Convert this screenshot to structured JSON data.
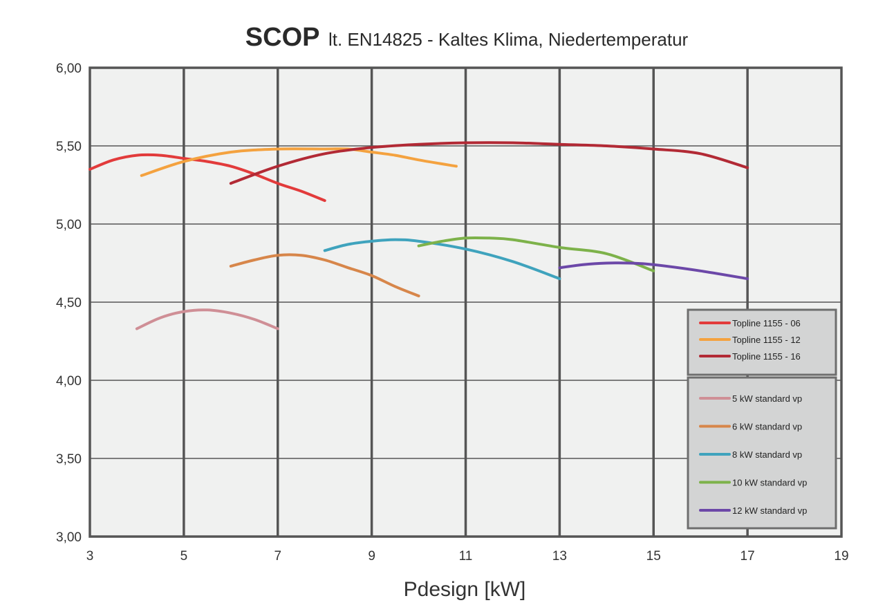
{
  "chart_data": {
    "type": "line",
    "title_bold": "SCOP",
    "title_rest": "lt. EN14825 - Kaltes Klima, Niedertemperatur",
    "xlabel": "Pdesign [kW]",
    "ylabel": "",
    "xlim": [
      3,
      19
    ],
    "ylim": [
      3.0,
      6.0
    ],
    "x_ticks": [
      3,
      5,
      7,
      9,
      11,
      13,
      15,
      17,
      19
    ],
    "x_tick_labels": [
      "3",
      "5",
      "7",
      "9",
      "11",
      "13",
      "15",
      "17",
      "19"
    ],
    "y_ticks": [
      3.0,
      3.5,
      4.0,
      4.5,
      5.0,
      5.5,
      6.0
    ],
    "y_tick_labels": [
      "3,00",
      "3,50",
      "4,00",
      "4,50",
      "5,00",
      "5,50",
      "6,00"
    ],
    "grid": true,
    "background": "#f0f1f0",
    "legend_placement": "bottom-right",
    "legend_groups": [
      [
        "Topline 1155 - 06",
        "Topline 1155 - 12",
        "Topline 1155 - 16"
      ],
      [
        "5 kW standard vp",
        "6 kW standard vp",
        "8 kW standard vp",
        "10 kW standard vp",
        "12 kW standard vp"
      ]
    ],
    "series": [
      {
        "name": "Topline 1155 - 06",
        "color": "#e23b3b",
        "x": [
          3,
          3.5,
          4,
          4.5,
          5,
          5.5,
          6,
          6.5,
          7,
          7.5,
          8
        ],
        "y": [
          5.35,
          5.41,
          5.44,
          5.44,
          5.42,
          5.4,
          5.37,
          5.32,
          5.26,
          5.21,
          5.15
        ]
      },
      {
        "name": "Topline 1155 - 12",
        "color": "#f4a23f",
        "x": [
          4.1,
          5,
          6,
          7,
          8,
          8.5,
          9,
          9.5,
          10,
          10.8
        ],
        "y": [
          5.31,
          5.4,
          5.46,
          5.48,
          5.48,
          5.48,
          5.46,
          5.44,
          5.41,
          5.37
        ]
      },
      {
        "name": "Topline 1155 - 16",
        "color": "#b22a35",
        "x": [
          6,
          7,
          8,
          9,
          10,
          11,
          12,
          13,
          14,
          15,
          16,
          17
        ],
        "y": [
          5.26,
          5.37,
          5.45,
          5.49,
          5.51,
          5.52,
          5.52,
          5.51,
          5.5,
          5.48,
          5.45,
          5.36
        ]
      },
      {
        "name": "5 kW standard vp",
        "color": "#cf8f96",
        "x": [
          4,
          4.5,
          5,
          5.5,
          6,
          6.5,
          7
        ],
        "y": [
          4.33,
          4.4,
          4.44,
          4.45,
          4.43,
          4.39,
          4.33
        ]
      },
      {
        "name": "6 kW standard vp",
        "color": "#d7864a",
        "x": [
          6,
          6.5,
          7,
          7.5,
          8,
          8.5,
          9,
          9.5,
          10
        ],
        "y": [
          4.73,
          4.77,
          4.8,
          4.8,
          4.77,
          4.72,
          4.67,
          4.6,
          4.54
        ]
      },
      {
        "name": "8 kW standard vp",
        "color": "#3fa3bd",
        "x": [
          8,
          8.5,
          9,
          9.5,
          10,
          11,
          12,
          13
        ],
        "y": [
          4.83,
          4.87,
          4.89,
          4.9,
          4.89,
          4.84,
          4.76,
          4.65
        ]
      },
      {
        "name": "10 kW standard vp",
        "color": "#7db24a",
        "x": [
          10,
          10.5,
          11,
          11.5,
          12,
          13,
          14,
          15
        ],
        "y": [
          4.86,
          4.89,
          4.91,
          4.91,
          4.9,
          4.85,
          4.81,
          4.7
        ]
      },
      {
        "name": "12 kW standard vp",
        "color": "#6c48a8",
        "x": [
          13,
          13.5,
          14,
          14.5,
          15,
          16,
          17
        ],
        "y": [
          4.72,
          4.74,
          4.75,
          4.75,
          4.74,
          4.7,
          4.65
        ]
      }
    ]
  }
}
